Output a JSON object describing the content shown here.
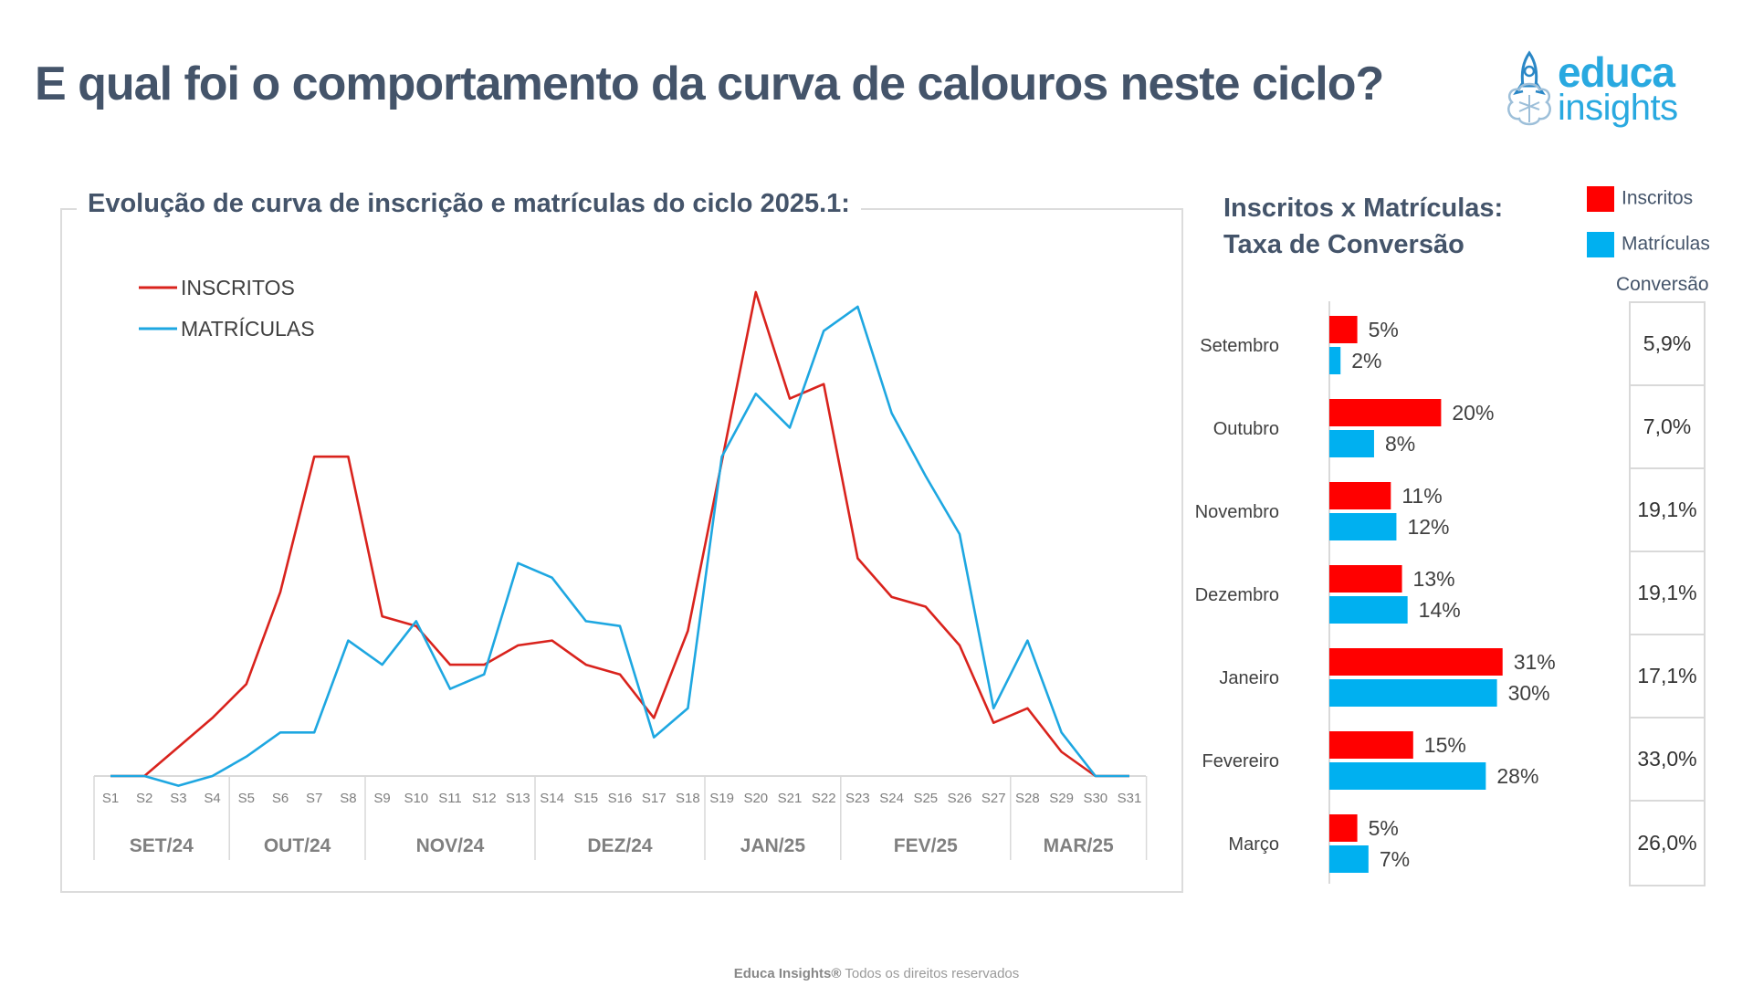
{
  "page": {
    "title": "E qual foi o comportamento da curva de calouros neste ciclo?",
    "footer_brand": "Educa Insights®",
    "footer_text": " Todos os direitos reservados"
  },
  "logo": {
    "word1": "educa",
    "word2": "insights"
  },
  "line_panel": {
    "title": "Evolução de curva de inscrição e matrículas do ciclo 2025.1:"
  },
  "bar_panel": {
    "title_line1": "Inscritos x Matrículas:",
    "title_line2": "Taxa de Conversão",
    "conversion_header": "Conversão"
  },
  "colors": {
    "inscritos_line": "#d9231d",
    "matriculas_line": "#1ea7e1",
    "inscritos_bar": "#ff0000",
    "matriculas_bar": "#00b0f0",
    "title": "#44546a"
  },
  "chart_data": [
    {
      "type": "line",
      "title": "Evolução de curva de inscrição e matrículas do ciclo 2025.1:",
      "x": [
        "S1",
        "S2",
        "S3",
        "S4",
        "S5",
        "S6",
        "S7",
        "S8",
        "S9",
        "S10",
        "S11",
        "S12",
        "S13",
        "S14",
        "S15",
        "S16",
        "S17",
        "S18",
        "S19",
        "S20",
        "S21",
        "S22",
        "S23",
        "S24",
        "S25",
        "S26",
        "S27",
        "S28",
        "S29",
        "S30",
        "S31"
      ],
      "month_groups": [
        {
          "label": "SET/24",
          "from": 0,
          "to": 3
        },
        {
          "label": "OUT/24",
          "from": 4,
          "to": 7
        },
        {
          "label": "NOV/24",
          "from": 8,
          "to": 12
        },
        {
          "label": "DEZ/24",
          "from": 13,
          "to": 17
        },
        {
          "label": "JAN/25",
          "from": 18,
          "to": 21
        },
        {
          "label": "FEV/25",
          "from": 22,
          "to": 26
        },
        {
          "label": "MAR/25",
          "from": 27,
          "to": 30
        }
      ],
      "ylim": [
        0,
        100
      ],
      "grid": false,
      "legend_position": "top-left",
      "series": [
        {
          "name": "INSCRITOS",
          "values": [
            0,
            0,
            6,
            12,
            19,
            38,
            66,
            66,
            33,
            31,
            23,
            23,
            27,
            28,
            23,
            21,
            12,
            30,
            65,
            100,
            78,
            81,
            45,
            37,
            35,
            27,
            11,
            14,
            5,
            0,
            0
          ]
        },
        {
          "name": "MATRÍCULAS",
          "values": [
            0,
            0,
            -2,
            0,
            4,
            9,
            9,
            28,
            23,
            32,
            18,
            21,
            44,
            41,
            32,
            31,
            8,
            14,
            66,
            79,
            72,
            92,
            97,
            75,
            62,
            50,
            14,
            28,
            9,
            0,
            0
          ]
        }
      ]
    },
    {
      "type": "bar",
      "title": "Inscritos x Matrículas: Taxa de Conversão",
      "orientation": "horizontal",
      "categories": [
        "Setembro",
        "Outubro",
        "Novembro",
        "Dezembro",
        "Janeiro",
        "Fevereiro",
        "Março"
      ],
      "series": [
        {
          "name": "Inscritos",
          "values": [
            5,
            20,
            11,
            13,
            31,
            15,
            5
          ],
          "labels": [
            "5%",
            "20%",
            "11%",
            "13%",
            "31%",
            "15%",
            "5%"
          ]
        },
        {
          "name": "Matrículas",
          "values": [
            2,
            8,
            12,
            14,
            30,
            28,
            7
          ],
          "labels": [
            "2%",
            "8%",
            "12%",
            "14%",
            "30%",
            "28%",
            "7%"
          ]
        }
      ],
      "conversion_header": "Conversão",
      "conversion": [
        "5,9%",
        "7,0%",
        "19,1%",
        "19,1%",
        "17,1%",
        "33,0%",
        "26,0%"
      ],
      "xlim": [
        0,
        35
      ],
      "legend_position": "top-right"
    }
  ]
}
